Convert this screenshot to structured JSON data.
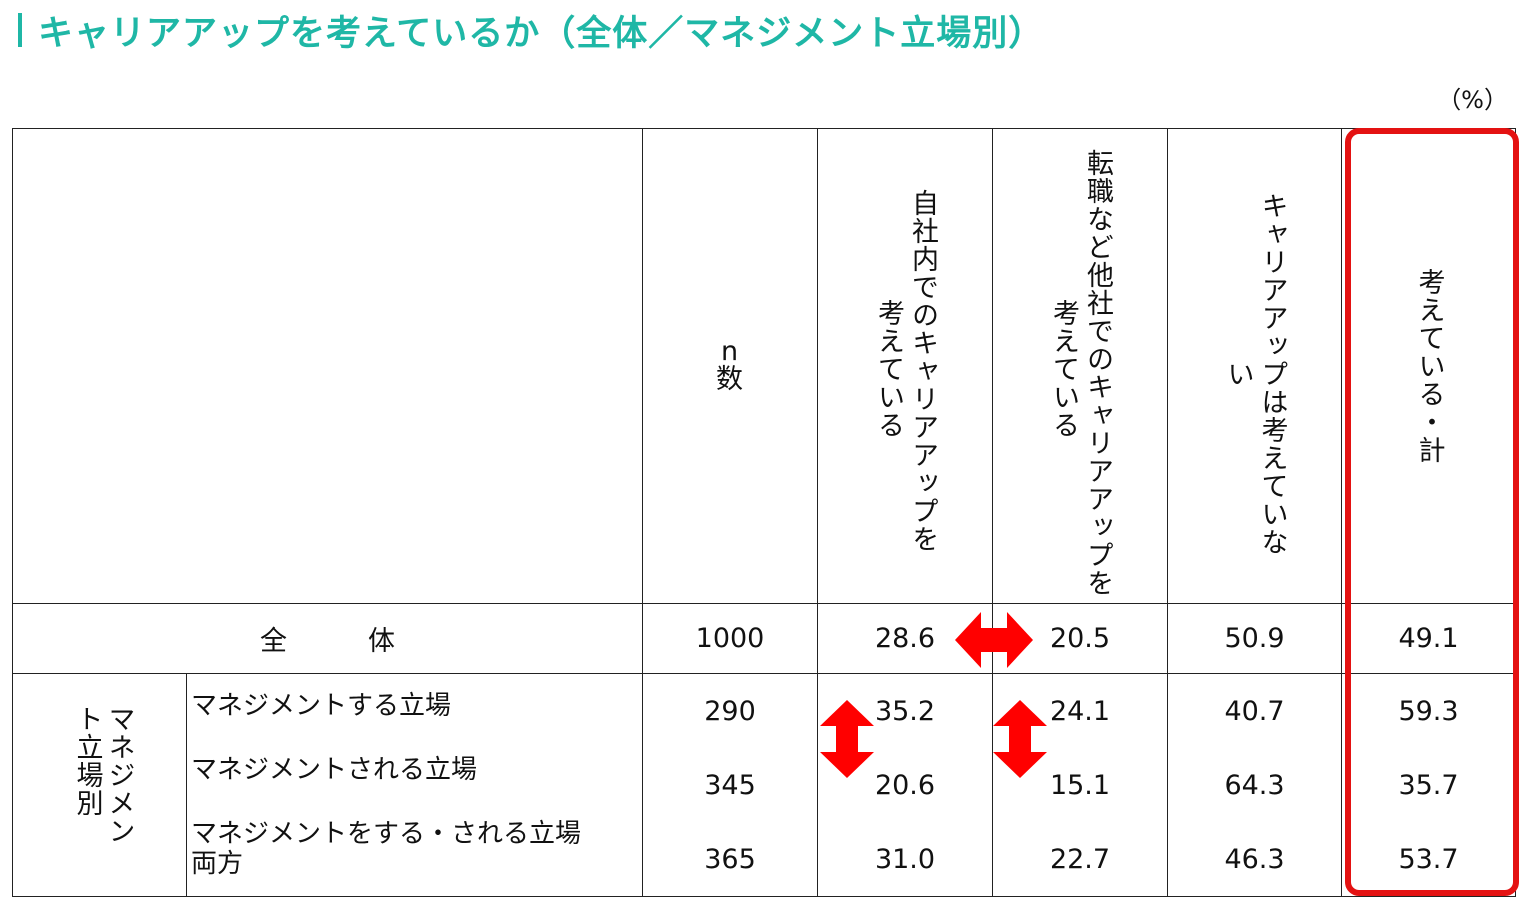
{
  "header": {
    "title": "キャリアアップを考えているか（全体／マネジメント立場別）",
    "unit": "（%）"
  },
  "colors": {
    "accent": "#1fb7a6",
    "highlight": "#e41212",
    "arrow": "#ff0000"
  },
  "table": {
    "columns": [
      "n\n数",
      "自社内でのキャリアアップを\n考えている",
      "転職など他社でのキャリアアップを\n考えている",
      "キャリアアップは考えていない",
      "考えている・計"
    ],
    "total_label": "全　　　体",
    "group_label": "マネジメント立場別",
    "rows": [
      {
        "label": "全　　　体",
        "n": "1000",
        "v1": "28.6",
        "v2": "20.5",
        "v3": "50.9",
        "v4": "49.1"
      },
      {
        "label": "マネジメントする立場",
        "n": "290",
        "v1": "35.2",
        "v2": "24.1",
        "v3": "40.7",
        "v4": "59.3"
      },
      {
        "label": "マネジメントされる立場",
        "n": "345",
        "v1": "20.6",
        "v2": "15.1",
        "v3": "64.3",
        "v4": "35.7"
      },
      {
        "label": "マネジメントをする・される立場\n両方",
        "n": "365",
        "v1": "31.0",
        "v2": "22.7",
        "v3": "46.3",
        "v4": "53.7"
      }
    ]
  },
  "chart_data": {
    "type": "table",
    "title": "キャリアアップを考えているか（全体／マネジメント立場別）",
    "unit": "%",
    "columns": [
      "n数",
      "自社内でのキャリアアップを考えている",
      "転職など他社でのキャリアアップを考えている",
      "キャリアアップは考えていない",
      "考えている・計"
    ],
    "rows": [
      {
        "group": "",
        "label": "全体",
        "values": [
          1000,
          28.6,
          20.5,
          50.9,
          49.1
        ]
      },
      {
        "group": "マネジメント立場別",
        "label": "マネジメントする立場",
        "values": [
          290,
          35.2,
          24.1,
          40.7,
          59.3
        ]
      },
      {
        "group": "マネジメント立場別",
        "label": "マネジメントされる立場",
        "values": [
          345,
          20.6,
          15.1,
          64.3,
          35.7
        ]
      },
      {
        "group": "マネジメント立場別",
        "label": "マネジメントをする・される立場両方",
        "values": [
          365,
          31.0,
          22.7,
          46.3,
          53.7
        ]
      }
    ],
    "highlighted_column": "考えている・計"
  }
}
